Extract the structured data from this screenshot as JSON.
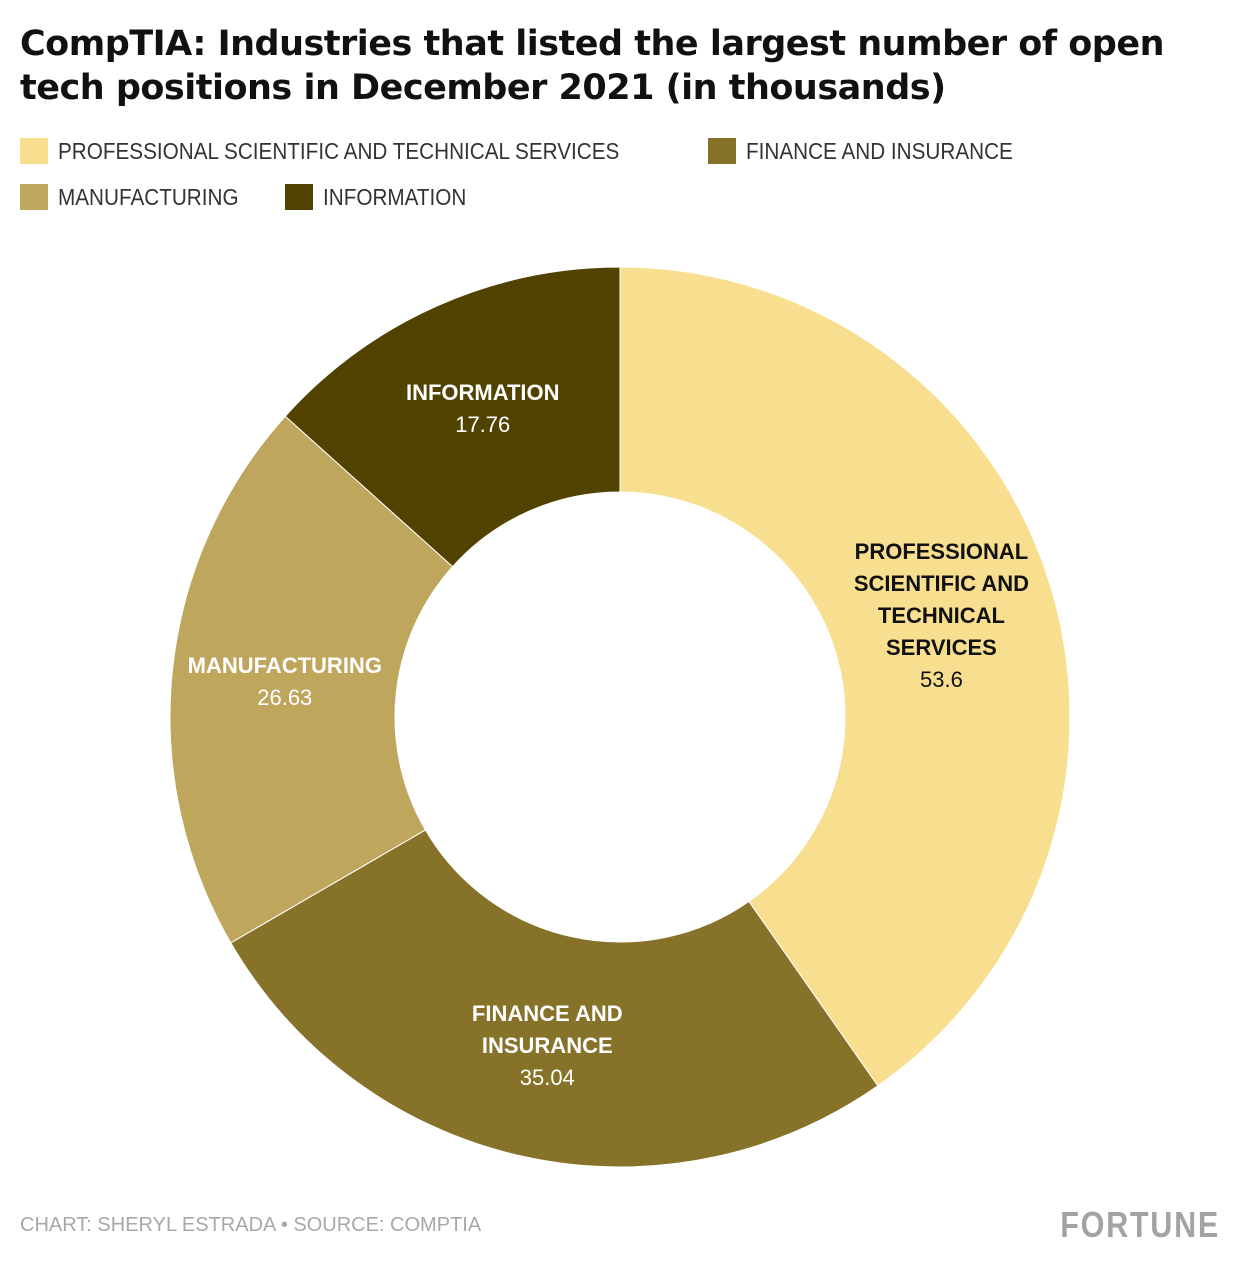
{
  "chart_data": {
    "type": "pie",
    "variant": "donut",
    "title": "CompTIA: Industries that listed the largest number of open tech positions in December 2021 (in thousands)",
    "legend_position": "top-left",
    "slices": [
      {
        "label": "PROFESSIONAL SCIENTIFIC AND TECHNICAL SERVICES",
        "value": 53.6,
        "value_label": "53.6",
        "color": "#F8DE8F",
        "text_color": "#111111"
      },
      {
        "label": "FINANCE AND INSURANCE",
        "value": 35.04,
        "value_label": "35.04",
        "color": "#87722A",
        "text_color": "#FFFFFF"
      },
      {
        "label": "MANUFACTURING",
        "value": 26.63,
        "value_label": "26.63",
        "color": "#BFA65D",
        "text_color": "#FFFFFF"
      },
      {
        "label": "INFORMATION",
        "value": 17.76,
        "value_label": "17.76",
        "color": "#524200",
        "text_color": "#FFFFFF"
      }
    ],
    "legend_order": [
      0,
      1,
      2,
      3
    ]
  },
  "footer": {
    "credit": "CHART: SHERYL ESTRADA • SOURCE: COMPTIA",
    "logo": "FORTUNE"
  }
}
